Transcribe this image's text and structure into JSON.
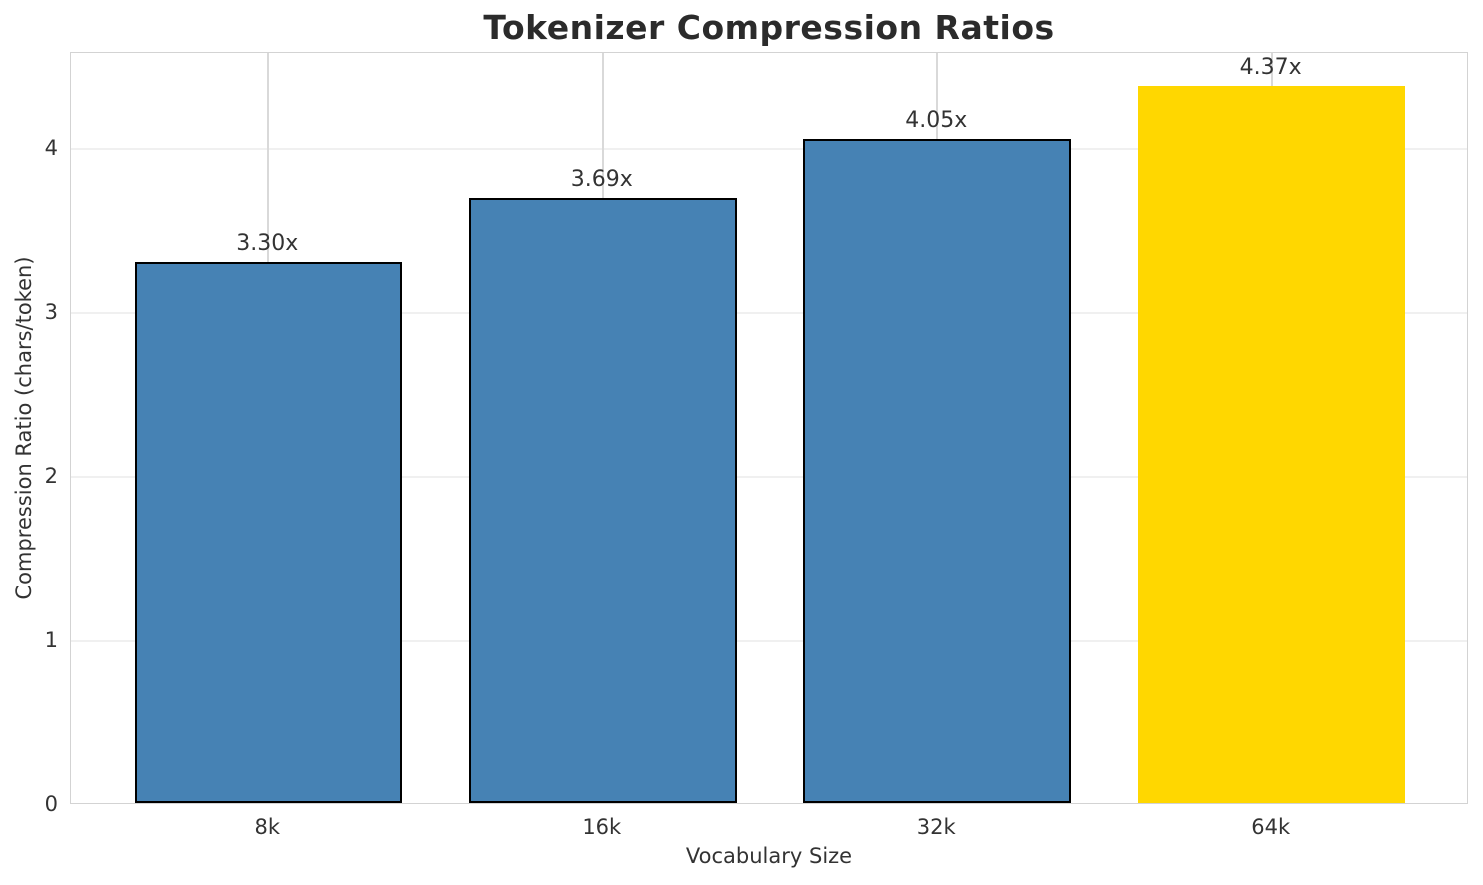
{
  "chart_data": {
    "type": "bar",
    "title": "Tokenizer Compression Ratios",
    "xlabel": "Vocabulary Size",
    "ylabel": "Compression Ratio (chars/token)",
    "categories": [
      "8k",
      "16k",
      "32k",
      "64k"
    ],
    "values": [
      3.3,
      3.69,
      4.05,
      4.37
    ],
    "bar_labels": [
      "3.30x",
      "3.69x",
      "4.05x",
      "4.37x"
    ],
    "bar_colors": [
      "#4682B4",
      "#4682B4",
      "#4682B4",
      "#FFD700"
    ],
    "bar_edge_colors": [
      "#000000",
      "#000000",
      "#000000",
      "none"
    ],
    "highlight_category": "64k",
    "yticks": [
      "0",
      "1",
      "2",
      "3",
      "4"
    ],
    "ytick_values": [
      0,
      1,
      2,
      3,
      4
    ],
    "ylim": [
      0,
      4.585
    ],
    "grid": true,
    "legend_position": "none",
    "colors": {
      "bar": "#4682B4",
      "highlight": "#FFD700",
      "bar_edge": "#000000",
      "grid_horizontal": "#f0f0f0",
      "grid_vertical": "#d9d9d9",
      "spine": "#d3d3d3",
      "text": "#333333",
      "title_text": "#2b2b2b",
      "background": "#ffffff"
    }
  }
}
